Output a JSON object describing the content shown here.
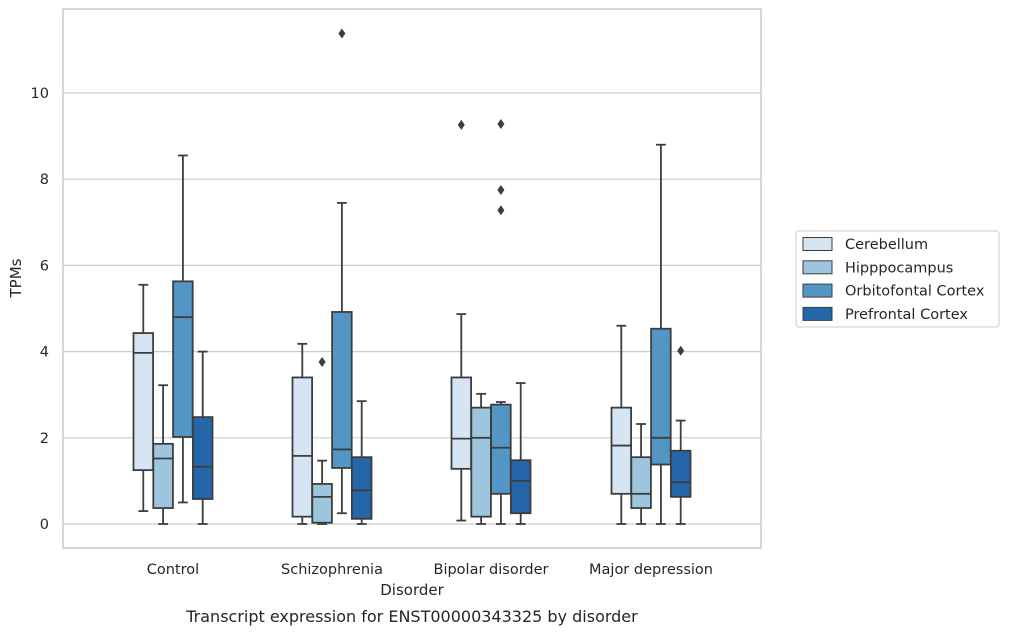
{
  "chart_data": {
    "type": "box",
    "xlabel": "Disorder",
    "ylabel": "TPMs",
    "caption": "Transcript expression for ENST00000343325 by disorder",
    "categories": [
      "Control",
      "Schizophrenia",
      "Bipolar disorder",
      "Major depression"
    ],
    "yticks": [
      0,
      2,
      4,
      6,
      8,
      10
    ],
    "ylim": [
      -0.55,
      12.0
    ],
    "grid": "horizontal",
    "legend_position": "right",
    "series": [
      {
        "name": "Cerebellum",
        "color": "#d6e5f4",
        "boxes": [
          {
            "whisker_low": 0.3,
            "q1": 1.25,
            "median": 3.97,
            "q3": 4.43,
            "whisker_high": 5.55,
            "outliers": []
          },
          {
            "whisker_low": 0.0,
            "q1": 0.17,
            "median": 1.58,
            "q3": 3.4,
            "whisker_high": 4.18,
            "outliers": []
          },
          {
            "whisker_low": 0.08,
            "q1": 1.28,
            "median": 1.98,
            "q3": 3.4,
            "whisker_high": 4.87,
            "outliers": [
              9.26
            ]
          },
          {
            "whisker_low": 0.0,
            "q1": 0.7,
            "median": 1.82,
            "q3": 2.7,
            "whisker_high": 4.6,
            "outliers": []
          }
        ]
      },
      {
        "name": "Hipppocampus",
        "color": "#9dc5dd",
        "boxes": [
          {
            "whisker_low": 0.0,
            "q1": 0.37,
            "median": 1.52,
            "q3": 1.86,
            "whisker_high": 3.22,
            "outliers": []
          },
          {
            "whisker_low": 0.0,
            "q1": 0.03,
            "median": 0.63,
            "q3": 0.93,
            "whisker_high": 1.47,
            "outliers": [
              3.76
            ]
          },
          {
            "whisker_low": 0.0,
            "q1": 0.17,
            "median": 2.0,
            "q3": 2.7,
            "whisker_high": 3.02,
            "outliers": []
          },
          {
            "whisker_low": 0.0,
            "q1": 0.37,
            "median": 0.7,
            "q3": 1.55,
            "whisker_high": 2.32,
            "outliers": []
          }
        ]
      },
      {
        "name": "Orbitofontal Cortex",
        "color": "#5396c5",
        "boxes": [
          {
            "whisker_low": 0.5,
            "q1": 2.02,
            "median": 4.8,
            "q3": 5.63,
            "whisker_high": 8.55,
            "outliers": []
          },
          {
            "whisker_low": 0.25,
            "q1": 1.3,
            "median": 1.73,
            "q3": 4.92,
            "whisker_high": 7.45,
            "outliers": [
              11.38
            ]
          },
          {
            "whisker_low": 0.0,
            "q1": 0.7,
            "median": 1.77,
            "q3": 2.77,
            "whisker_high": 2.83,
            "outliers": [
              7.28,
              7.75,
              9.28
            ]
          },
          {
            "whisker_low": 0.0,
            "q1": 1.38,
            "median": 2.0,
            "q3": 4.53,
            "whisker_high": 8.8,
            "outliers": []
          }
        ]
      },
      {
        "name": "Prefrontal Cortex",
        "color": "#2466a8",
        "boxes": [
          {
            "whisker_low": 0.0,
            "q1": 0.58,
            "median": 1.33,
            "q3": 2.48,
            "whisker_high": 4.0,
            "outliers": []
          },
          {
            "whisker_low": 0.0,
            "q1": 0.12,
            "median": 0.78,
            "q3": 1.55,
            "whisker_high": 2.85,
            "outliers": []
          },
          {
            "whisker_low": 0.0,
            "q1": 0.25,
            "median": 1.0,
            "q3": 1.48,
            "whisker_high": 3.27,
            "outliers": []
          },
          {
            "whisker_low": 0.0,
            "q1": 0.63,
            "median": 0.97,
            "q3": 1.7,
            "whisker_high": 2.4,
            "outliers": [
              4.02
            ]
          }
        ]
      }
    ]
  }
}
